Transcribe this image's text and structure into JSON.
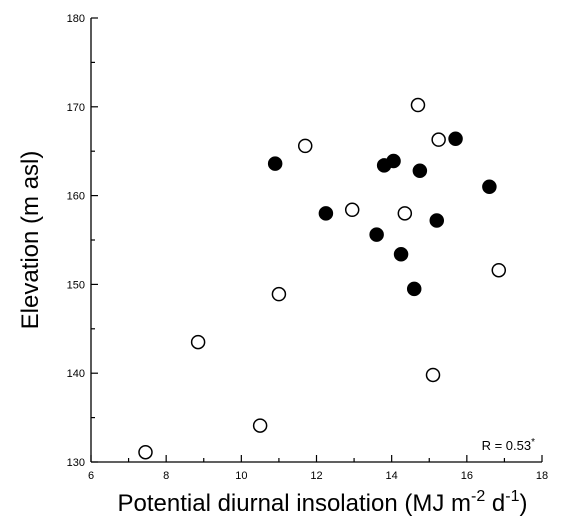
{
  "chart_data": {
    "type": "scatter",
    "xlabel_main": "Potential diurnal insolation (MJ m",
    "xlabel_sup1": "-2",
    "xlabel_mid": " d",
    "xlabel_sup2": "-1",
    "xlabel_end": ")",
    "ylabel": "Elevation (m asl)",
    "xlim": [
      6,
      18
    ],
    "ylim": [
      130,
      180
    ],
    "xticks": [
      6,
      8,
      10,
      12,
      14,
      16,
      18
    ],
    "yticks": [
      130,
      140,
      150,
      160,
      170,
      180
    ],
    "annotation": {
      "text": "R = 0.53",
      "sup": "*"
    },
    "series": [
      {
        "marker": "filled",
        "color": "#000000",
        "points": [
          {
            "x": 10.9,
            "y": 163.6
          },
          {
            "x": 12.25,
            "y": 158.0
          },
          {
            "x": 13.6,
            "y": 155.6
          },
          {
            "x": 13.8,
            "y": 163.4
          },
          {
            "x": 14.05,
            "y": 163.9
          },
          {
            "x": 14.25,
            "y": 153.4
          },
          {
            "x": 14.6,
            "y": 149.5
          },
          {
            "x": 14.75,
            "y": 162.8
          },
          {
            "x": 15.2,
            "y": 157.2
          },
          {
            "x": 15.7,
            "y": 166.4
          },
          {
            "x": 16.6,
            "y": 161.0
          }
        ]
      },
      {
        "marker": "open",
        "color": "#000000",
        "points": [
          {
            "x": 7.45,
            "y": 131.1
          },
          {
            "x": 8.85,
            "y": 143.5
          },
          {
            "x": 10.5,
            "y": 134.1
          },
          {
            "x": 11.0,
            "y": 148.9
          },
          {
            "x": 11.7,
            "y": 165.6
          },
          {
            "x": 12.95,
            "y": 158.4
          },
          {
            "x": 14.35,
            "y": 158.0
          },
          {
            "x": 14.7,
            "y": 170.2
          },
          {
            "x": 15.1,
            "y": 139.8
          },
          {
            "x": 15.25,
            "y": 166.3
          },
          {
            "x": 16.85,
            "y": 151.6
          }
        ]
      }
    ]
  }
}
